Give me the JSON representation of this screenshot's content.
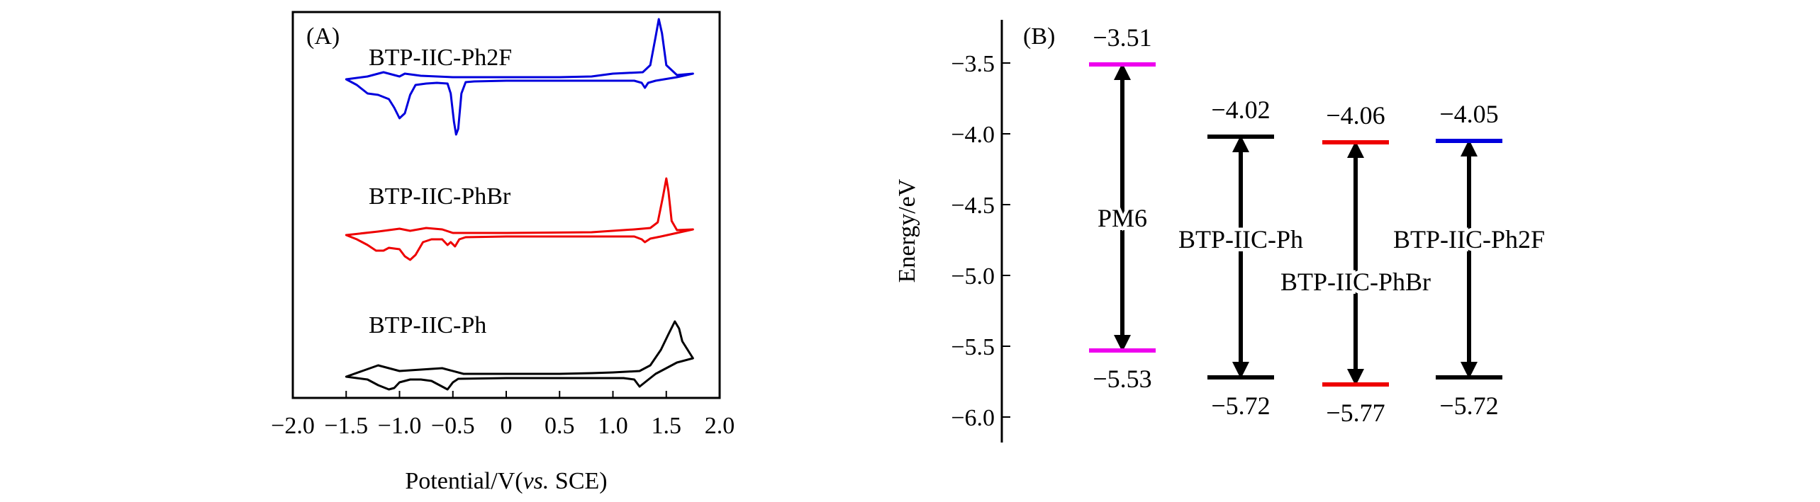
{
  "chart_data": [
    {
      "panel": "(A)",
      "type": "line",
      "title": "",
      "xlabel": "Potential/V(",
      "xlabel_italic": "vs.",
      "xlabel_tail": " SCE)",
      "ylabel": "",
      "xlim": [
        -2.0,
        2.0
      ],
      "xticks": [
        "−2.0",
        "−1.5",
        "−1.0",
        "−0.5",
        "0",
        "0.5",
        "1.0",
        "1.5",
        "2.0"
      ],
      "xtick_values": [
        -2.0,
        -1.5,
        -1.0,
        -0.5,
        0,
        0.5,
        1.0,
        1.5,
        2.0
      ],
      "yaxis": "arbitrary current, traces offset vertically",
      "series": [
        {
          "name": "BTP-IIC-Ph2F",
          "color": "#0000dd",
          "baseline": 0,
          "points": [
            [
              -1.5,
              0
            ],
            [
              -1.4,
              -8
            ],
            [
              -1.3,
              -20
            ],
            [
              -1.2,
              -22
            ],
            [
              -1.1,
              -28
            ],
            [
              -1.05,
              -40
            ],
            [
              -1.0,
              -55
            ],
            [
              -0.95,
              -48
            ],
            [
              -0.9,
              -22
            ],
            [
              -0.85,
              -8
            ],
            [
              -0.75,
              -6
            ],
            [
              -0.65,
              -5
            ],
            [
              -0.55,
              -6
            ],
            [
              -0.52,
              -20
            ],
            [
              -0.49,
              -60
            ],
            [
              -0.47,
              -78
            ],
            [
              -0.45,
              -70
            ],
            [
              -0.42,
              -20
            ],
            [
              -0.38,
              -4
            ],
            [
              -0.3,
              -3
            ],
            [
              0,
              -2
            ],
            [
              0.5,
              -2
            ],
            [
              0.9,
              -2
            ],
            [
              1.2,
              -2
            ],
            [
              1.27,
              -5
            ],
            [
              1.3,
              -12
            ],
            [
              1.33,
              -5
            ],
            [
              1.4,
              -2
            ],
            [
              1.6,
              3
            ],
            [
              1.75,
              8
            ],
            [
              1.6,
              6
            ],
            [
              1.5,
              20
            ],
            [
              1.46,
              65
            ],
            [
              1.43,
              85
            ],
            [
              1.4,
              60
            ],
            [
              1.35,
              20
            ],
            [
              1.28,
              10
            ],
            [
              1.0,
              8
            ],
            [
              0.8,
              4
            ],
            [
              0.5,
              3
            ],
            [
              0,
              3
            ],
            [
              -0.5,
              3
            ],
            [
              -0.8,
              5
            ],
            [
              -0.95,
              8
            ],
            [
              -1.0,
              4
            ],
            [
              -1.15,
              10
            ],
            [
              -1.3,
              4
            ],
            [
              -1.5,
              0
            ]
          ]
        },
        {
          "name": "BTP-IIC-PhBr",
          "color": "#ee0000",
          "baseline": 0,
          "points": [
            [
              -1.5,
              0
            ],
            [
              -1.4,
              -6
            ],
            [
              -1.3,
              -14
            ],
            [
              -1.22,
              -22
            ],
            [
              -1.15,
              -22
            ],
            [
              -1.1,
              -18
            ],
            [
              -1.0,
              -20
            ],
            [
              -0.95,
              -30
            ],
            [
              -0.9,
              -35
            ],
            [
              -0.85,
              -28
            ],
            [
              -0.78,
              -10
            ],
            [
              -0.7,
              -6
            ],
            [
              -0.6,
              -6
            ],
            [
              -0.55,
              -14
            ],
            [
              -0.52,
              -10
            ],
            [
              -0.48,
              -16
            ],
            [
              -0.44,
              -6
            ],
            [
              -0.38,
              -3
            ],
            [
              0,
              -2
            ],
            [
              0.9,
              -2
            ],
            [
              1.2,
              -2
            ],
            [
              1.27,
              -6
            ],
            [
              1.3,
              -10
            ],
            [
              1.35,
              -5
            ],
            [
              1.45,
              -2
            ],
            [
              1.6,
              3
            ],
            [
              1.75,
              8
            ],
            [
              1.6,
              7
            ],
            [
              1.55,
              20
            ],
            [
              1.52,
              62
            ],
            [
              1.5,
              80
            ],
            [
              1.47,
              55
            ],
            [
              1.42,
              18
            ],
            [
              1.35,
              10
            ],
            [
              1.2,
              8
            ],
            [
              0.8,
              4
            ],
            [
              0,
              3
            ],
            [
              -0.5,
              3
            ],
            [
              -0.6,
              8
            ],
            [
              -0.75,
              10
            ],
            [
              -0.9,
              6
            ],
            [
              -1.0,
              9
            ],
            [
              -1.2,
              5
            ],
            [
              -1.5,
              0
            ]
          ]
        },
        {
          "name": "BTP-IIC-Ph",
          "color": "#000000",
          "baseline": 0,
          "points": [
            [
              -1.5,
              0
            ],
            [
              -1.4,
              -2
            ],
            [
              -1.3,
              -4
            ],
            [
              -1.2,
              -12
            ],
            [
              -1.1,
              -18
            ],
            [
              -1.05,
              -16
            ],
            [
              -1.0,
              -8
            ],
            [
              -0.9,
              -4
            ],
            [
              -0.8,
              -4
            ],
            [
              -0.7,
              -6
            ],
            [
              -0.6,
              -14
            ],
            [
              -0.55,
              -18
            ],
            [
              -0.5,
              -8
            ],
            [
              -0.45,
              -3
            ],
            [
              0,
              -2
            ],
            [
              0.5,
              -2
            ],
            [
              0.9,
              -2
            ],
            [
              1.1,
              -2
            ],
            [
              1.2,
              -4
            ],
            [
              1.25,
              -14
            ],
            [
              1.3,
              -8
            ],
            [
              1.4,
              4
            ],
            [
              1.5,
              12
            ],
            [
              1.6,
              20
            ],
            [
              1.75,
              26
            ],
            [
              1.65,
              50
            ],
            [
              1.62,
              68
            ],
            [
              1.58,
              78
            ],
            [
              1.52,
              60
            ],
            [
              1.45,
              38
            ],
            [
              1.35,
              16
            ],
            [
              1.25,
              8
            ],
            [
              1.0,
              6
            ],
            [
              0.8,
              5
            ],
            [
              0.5,
              4
            ],
            [
              0,
              4
            ],
            [
              -0.4,
              4
            ],
            [
              -0.6,
              12
            ],
            [
              -0.8,
              10
            ],
            [
              -1.0,
              8
            ],
            [
              -1.2,
              16
            ],
            [
              -1.35,
              8
            ],
            [
              -1.5,
              0
            ]
          ]
        }
      ]
    },
    {
      "panel": "(B)",
      "type": "energy-level",
      "title": "",
      "xlabel": "",
      "ylabel": "Energy/eV",
      "ylim": [
        -6.2,
        -3.2
      ],
      "yticks": [
        "−3.5",
        "−4.0",
        "−4.5",
        "−5.0",
        "−5.5",
        "−6.0"
      ],
      "ytick_values": [
        -3.5,
        -4.0,
        -4.5,
        -5.0,
        -5.5,
        -6.0
      ],
      "materials": [
        {
          "name": "PM6",
          "lumo": -3.51,
          "homo": -5.53,
          "lumo_label": "−3.51",
          "homo_label": "−5.53",
          "lumo_color": "#ee00ee",
          "homo_color": "#ee00ee"
        },
        {
          "name": "BTP-IIC-Ph",
          "lumo": -4.02,
          "homo": -5.72,
          "lumo_label": "−4.02",
          "homo_label": "−5.72",
          "lumo_color": "#000000",
          "homo_color": "#000000"
        },
        {
          "name": "BTP-IIC-PhBr",
          "lumo": -4.06,
          "homo": -5.77,
          "lumo_label": "−4.06",
          "homo_label": "−5.77",
          "lumo_color": "#ee0000",
          "homo_color": "#ee0000"
        },
        {
          "name": "BTP-IIC-Ph2F",
          "lumo": -4.05,
          "homo": -5.72,
          "lumo_label": "−4.05",
          "homo_label": "−5.72",
          "lumo_color": "#0000dd",
          "homo_color": "#000000"
        }
      ]
    }
  ]
}
